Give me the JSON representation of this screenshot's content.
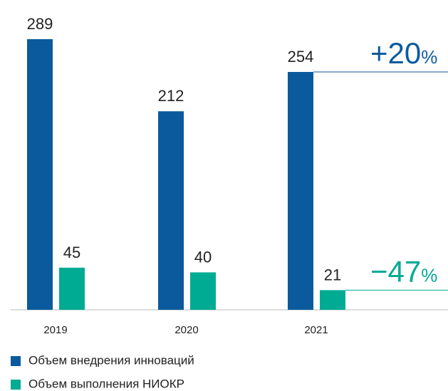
{
  "chart_data": {
    "type": "bar",
    "categories": [
      "2019",
      "2020",
      "2021"
    ],
    "series": [
      {
        "name": "Объем внедрения инноваций",
        "color": "#0b5a9e",
        "values": [
          289,
          212,
          254
        ]
      },
      {
        "name": "Объем выполнения НИОКР",
        "color": "#00ab93",
        "values": [
          45,
          40,
          21
        ]
      }
    ],
    "annotations": [
      {
        "text": "+20",
        "suffix": "%"
      },
      {
        "text": "−47",
        "suffix": "%"
      }
    ]
  }
}
